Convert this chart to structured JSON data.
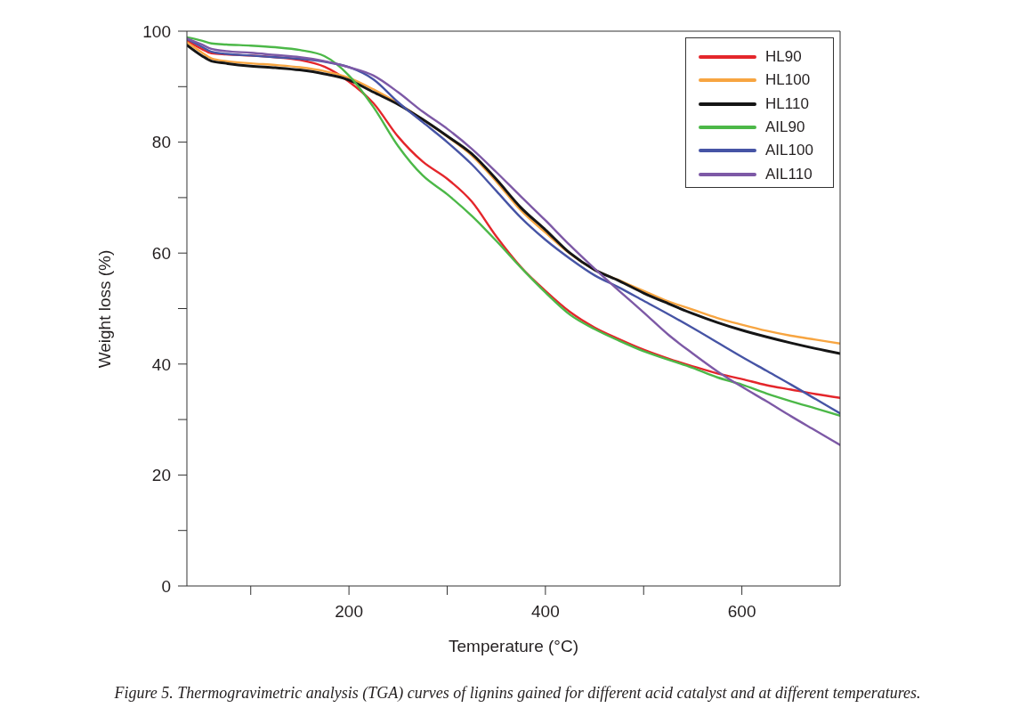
{
  "chart_data": {
    "type": "line",
    "xlabel": "Temperature (°C)",
    "ylabel": "Weight loss (%)",
    "annotations": [
      "Figure 5. Thermogravimetric analysis (TGA) curves of lignins gained for different acid catalyst and at different temperatures."
    ],
    "x": [
      35,
      50,
      60,
      75,
      100,
      125,
      150,
      175,
      200,
      225,
      250,
      275,
      300,
      325,
      350,
      375,
      400,
      425,
      450,
      475,
      500,
      525,
      550,
      575,
      600,
      625,
      650,
      675,
      700
    ],
    "xlim": [
      35,
      700
    ],
    "xticks": [
      {
        "value": 100,
        "label": null
      },
      200,
      {
        "value": 300,
        "label": null
      },
      400,
      {
        "value": 500,
        "label": null
      },
      600
    ],
    "ylim": [
      0,
      100
    ],
    "yticks": [
      0,
      {
        "value": 10,
        "label": null
      },
      20,
      {
        "value": 30,
        "label": null
      },
      40,
      {
        "value": 50,
        "label": null
      },
      60,
      {
        "value": 70,
        "label": null
      },
      80,
      {
        "value": 90,
        "label": null
      },
      100
    ],
    "legend": "top right",
    "series": [
      {
        "name": "HL90",
        "color": "#e4262b",
        "values": [
          98.3,
          96.8,
          96.0,
          95.8,
          95.6,
          95.3,
          94.8,
          93.6,
          90.9,
          87.0,
          81.0,
          76.5,
          73.4,
          69.3,
          63.0,
          57.5,
          53.2,
          49.4,
          46.6,
          44.5,
          42.6,
          41.0,
          39.6,
          38.3,
          37.3,
          36.2,
          35.4,
          34.6,
          33.9
        ]
      },
      {
        "name": "HL100",
        "color": "#f7a541",
        "values": [
          98.0,
          96.2,
          95.1,
          94.6,
          94.2,
          93.9,
          93.5,
          92.8,
          91.6,
          89.5,
          87.0,
          84.1,
          81.0,
          77.6,
          72.9,
          67.7,
          63.7,
          59.9,
          57.0,
          55.1,
          53.2,
          51.3,
          49.8,
          48.3,
          47.1,
          46.0,
          45.1,
          44.4,
          43.7
        ]
      },
      {
        "name": "HL110",
        "color": "#151515",
        "values": [
          97.5,
          95.6,
          94.6,
          94.2,
          93.7,
          93.4,
          93.0,
          92.3,
          91.2,
          89.0,
          86.8,
          84.1,
          81.1,
          77.9,
          73.3,
          68.2,
          64.2,
          60.0,
          57.0,
          55.0,
          52.8,
          50.9,
          49.1,
          47.5,
          46.1,
          44.9,
          43.8,
          42.8,
          41.9
        ]
      },
      {
        "name": "AIL90",
        "color": "#4cb848",
        "values": [
          98.9,
          98.3,
          97.8,
          97.6,
          97.4,
          97.1,
          96.6,
          95.5,
          92.0,
          86.3,
          79.3,
          74.0,
          70.6,
          66.7,
          62.2,
          57.4,
          52.9,
          48.9,
          46.3,
          44.2,
          42.3,
          40.8,
          39.3,
          37.6,
          36.3,
          34.7,
          33.3,
          32.0,
          30.7
        ]
      },
      {
        "name": "AIL100",
        "color": "#4654a5",
        "values": [
          98.6,
          97.2,
          96.3,
          95.9,
          95.6,
          95.3,
          95.0,
          94.5,
          93.5,
          91.3,
          87.2,
          83.6,
          80.0,
          76.0,
          71.2,
          66.4,
          62.4,
          59.0,
          56.0,
          53.8,
          51.4,
          49.0,
          46.5,
          43.9,
          41.3,
          38.8,
          36.3,
          33.7,
          31.1
        ]
      },
      {
        "name": "AIL110",
        "color": "#7d59a6",
        "values": [
          98.7,
          97.6,
          96.8,
          96.4,
          96.1,
          95.7,
          95.3,
          94.6,
          93.5,
          92.0,
          89.0,
          85.5,
          82.4,
          78.8,
          74.6,
          70.2,
          65.9,
          61.4,
          57.2,
          53.2,
          49.3,
          45.3,
          41.9,
          38.7,
          35.9,
          33.3,
          30.6,
          28.0,
          25.4
        ]
      }
    ]
  }
}
